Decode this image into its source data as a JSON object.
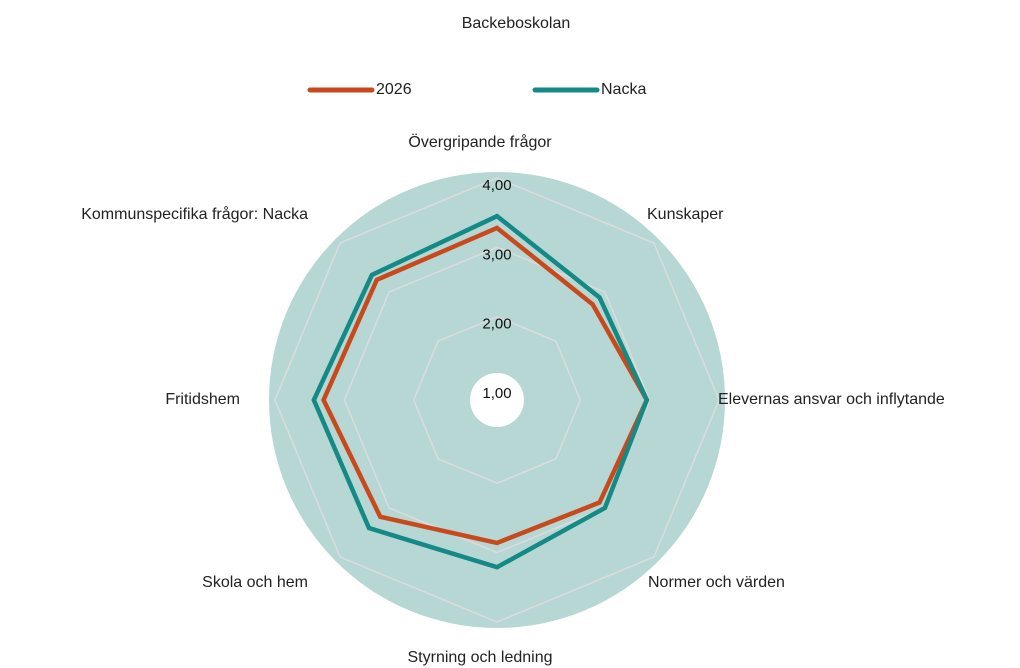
{
  "chart_data": {
    "type": "radar",
    "title": "Backeboskolan",
    "categories": [
      "Övergripande frågor",
      "Kunskaper",
      "Elevernas ansvar och inflytande",
      "Normer och värden",
      "Styrning och ledning",
      "Skola och hem",
      "Fritidshem",
      "Kommunspecifika frågor: Nacka"
    ],
    "series": [
      {
        "name": "2026",
        "color": "#c84a1c",
        "values": [
          3.28,
          2.75,
          2.96,
          2.89,
          2.86,
          3.18,
          3.3,
          3.25
        ]
      },
      {
        "name": "Nacka",
        "color": "#138a85",
        "values": [
          3.45,
          2.89,
          2.96,
          3.0,
          3.21,
          3.41,
          3.44,
          3.35
        ]
      }
    ],
    "ylim": [
      0.8,
      4
    ],
    "yticks": [
      {
        "value": 1,
        "label": "1,00"
      },
      {
        "value": 2,
        "label": "2,00"
      },
      {
        "value": 3,
        "label": "3,00"
      },
      {
        "value": 4,
        "label": "4,00"
      }
    ],
    "grid": true
  }
}
